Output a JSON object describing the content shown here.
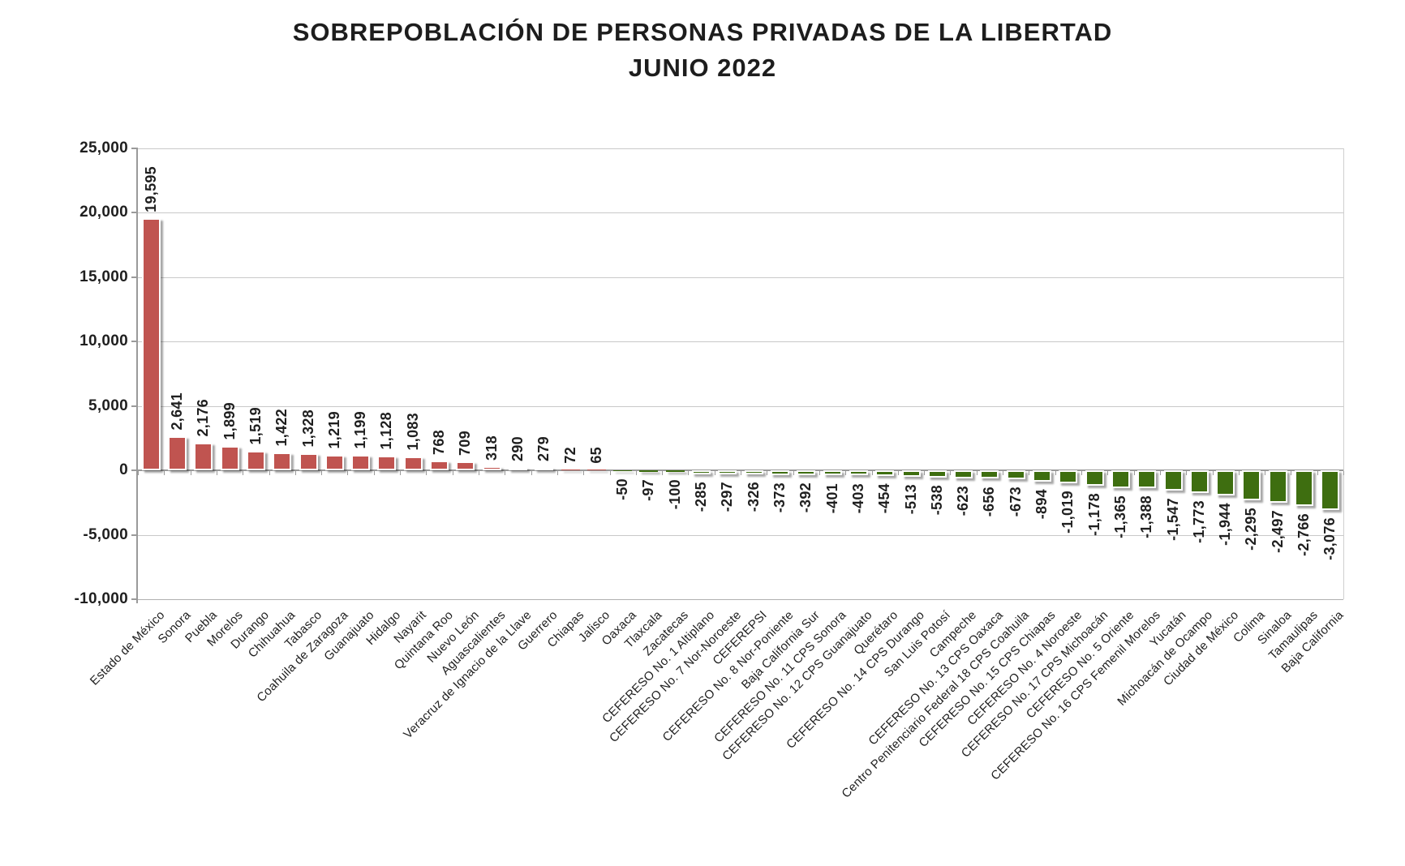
{
  "title": {
    "line1": "SOBREPOBLACIÓN DE PERSONAS PRIVADAS DE LA LIBERTAD",
    "line2": "JUNIO 2022"
  },
  "chart_data": {
    "type": "bar",
    "title": "SOBREPOBLACIÓN DE PERSONAS PRIVADAS DE LA LIBERTAD — JUNIO 2022",
    "xlabel": "",
    "ylabel": "",
    "ylim": [
      -10000,
      25000
    ],
    "ytick_step": 5000,
    "yticks": [
      "25,000",
      "20,000",
      "15,000",
      "10,000",
      "5,000",
      "0",
      "-5,000",
      "-10,000"
    ],
    "grid": true,
    "legend": false,
    "categories": [
      "Estado de México",
      "Sonora",
      "Puebla",
      "Morelos",
      "Durango",
      "Chihuahua",
      "Tabasco",
      "Coahuila de Zaragoza",
      "Guanajuato",
      "Hidalgo",
      "Nayarit",
      "Quintana Roo",
      "Nuevo León",
      "Aguascalientes",
      "Veracruz de Ignacio de la Llave",
      "Guerrero",
      "Chiapas",
      "Jalisco",
      "Oaxaca",
      "Tlaxcala",
      "Zacatecas",
      "CEFERESO No. 1 Altiplano",
      "CEFERESO No. 7 Nor-Noroeste",
      "CEFEREPSI",
      "CEFERESO No. 8 Nor-Poniente",
      "Baja California Sur",
      "CEFERESO No. 11 CPS Sonora",
      "CEFERESO No. 12 CPS Guanajuato",
      "Querétaro",
      "CEFERESO No. 14 CPS Durango",
      "San Luis Potosí",
      "Campeche",
      "CEFERESO No. 13 CPS Oaxaca",
      "Centro Penitenciario Federal 18 CPS Coahuila",
      "CEFERESO No. 15 CPS Chiapas",
      "CEFERESO No. 4 Noroeste",
      "CEFERESO No. 17 CPS Michoacán",
      "CEFERESO No. 5 Oriente",
      "CEFERESO No. 16 CPS Femenil Morelos",
      "Yucatán",
      "Michoacán de Ocampo",
      "Ciudad de México",
      "Colima",
      "Sinaloa",
      "Tamaulipas",
      "Baja California"
    ],
    "values": [
      19595,
      2641,
      2176,
      1899,
      1519,
      1422,
      1328,
      1219,
      1199,
      1128,
      1083,
      768,
      709,
      318,
      290,
      279,
      72,
      65,
      -50,
      -97,
      -100,
      -285,
      -297,
      -326,
      -373,
      -392,
      -401,
      -403,
      -454,
      -513,
      -538,
      -623,
      -656,
      -673,
      -894,
      -1019,
      -1178,
      -1365,
      -1388,
      -1547,
      -1773,
      -1944,
      -2295,
      -2497,
      -2766,
      -3076
    ],
    "colors": {
      "positive_bar": "#C05450",
      "negative_bar": "#3E6E10",
      "gridline": "#C9C9C9",
      "axis": "#9A9A9A",
      "text": "#1F1F1F"
    }
  }
}
